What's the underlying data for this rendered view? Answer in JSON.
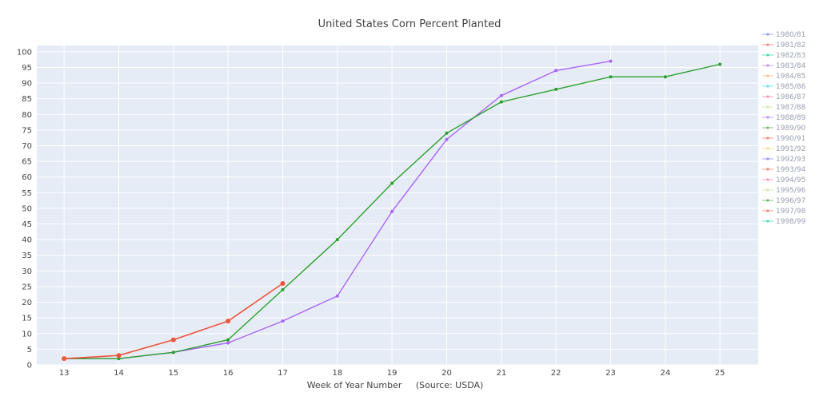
{
  "chart_data": {
    "type": "line",
    "title": "United States Corn Percent Planted",
    "xlabel": "Week of Year Number     (Source: USDA)",
    "ylabel": "",
    "xlim": [
      12.5,
      25.7
    ],
    "ylim": [
      0,
      102
    ],
    "x_ticks": [
      13,
      14,
      15,
      16,
      17,
      18,
      19,
      20,
      21,
      22,
      23,
      24,
      25
    ],
    "y_ticks": [
      0,
      5,
      10,
      15,
      20,
      25,
      30,
      35,
      40,
      45,
      50,
      55,
      60,
      65,
      70,
      75,
      80,
      85,
      90,
      95,
      100
    ],
    "grid": true,
    "legend_position": "right",
    "plot_background": "#e5ecf6",
    "series": [
      {
        "name": "1980/81",
        "color": "#636efa",
        "x": [],
        "y": []
      },
      {
        "name": "1981/82",
        "color": "#ef553b",
        "x": [],
        "y": []
      },
      {
        "name": "1982/83",
        "color": "#00cc96",
        "x": [],
        "y": []
      },
      {
        "name": "1983/84",
        "color": "#ab63fa",
        "x": [],
        "y": []
      },
      {
        "name": "1984/85",
        "color": "#ffa15a",
        "x": [],
        "y": []
      },
      {
        "name": "1985/86",
        "color": "#19d3f3",
        "x": [],
        "y": []
      },
      {
        "name": "1986/87",
        "color": "#ff6692",
        "x": [],
        "y": []
      },
      {
        "name": "1987/88",
        "color": "#b6e880",
        "x": [],
        "y": []
      },
      {
        "name": "1988/89",
        "color": "#ab63fa",
        "x": [
          13,
          14,
          15,
          16,
          17,
          18,
          19,
          20,
          21,
          22,
          23
        ],
        "y": [
          2,
          2,
          4,
          7,
          14,
          22,
          49,
          72,
          86,
          94,
          97
        ]
      },
      {
        "name": "1989/90",
        "color": "#2ca02c",
        "x": [
          13,
          14,
          15,
          16,
          17,
          18,
          19,
          20,
          21,
          22,
          23,
          24,
          25
        ],
        "y": [
          2,
          2,
          4,
          8,
          24,
          40,
          58,
          74,
          84,
          88,
          92,
          92,
          96
        ]
      },
      {
        "name": "1990/91",
        "color": "#ef553b",
        "x": [
          13,
          14,
          15,
          16,
          17
        ],
        "y": [
          2,
          3,
          8,
          14,
          26
        ]
      },
      {
        "name": "1991/92",
        "color": "#fecb52",
        "x": [],
        "y": []
      },
      {
        "name": "1992/93",
        "color": "#636efa",
        "x": [],
        "y": []
      },
      {
        "name": "1993/94",
        "color": "#ef553b",
        "x": [],
        "y": []
      },
      {
        "name": "1994/95",
        "color": "#ff6692",
        "x": [],
        "y": []
      },
      {
        "name": "1995/96",
        "color": "#b6e880",
        "x": [],
        "y": []
      },
      {
        "name": "1996/97",
        "color": "#2ca02c",
        "x": [],
        "y": []
      },
      {
        "name": "1997/98",
        "color": "#ef553b",
        "x": [],
        "y": []
      },
      {
        "name": "1998/99",
        "color": "#00cc96",
        "x": [],
        "y": []
      }
    ]
  }
}
